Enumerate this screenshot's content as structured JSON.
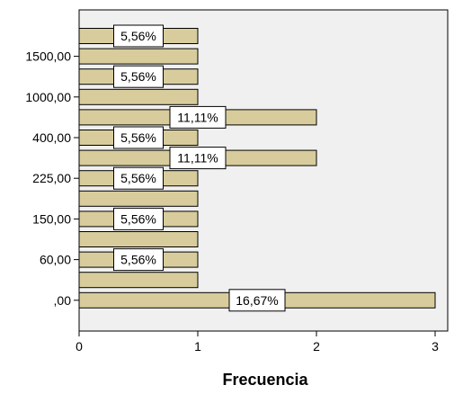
{
  "chart_data": {
    "type": "bar",
    "orientation": "horizontal",
    "title": "",
    "xlabel": "Frecuencia",
    "ylabel": "",
    "xlim": [
      0,
      3
    ],
    "x_ticks": [
      "0",
      "1",
      "2",
      "3"
    ],
    "y_tick_labels": [
      "1500,00",
      "1000,00",
      "400,00",
      "225,00",
      "150,00",
      "60,00",
      ",00"
    ],
    "bars": [
      {
        "value": 1,
        "label": "5,56%"
      },
      {
        "value": 1,
        "label": ""
      },
      {
        "value": 1,
        "label": "5,56%"
      },
      {
        "value": 1,
        "label": ""
      },
      {
        "value": 2,
        "label": "11,11%"
      },
      {
        "value": 1,
        "label": "5,56%"
      },
      {
        "value": 2,
        "label": "11,11%"
      },
      {
        "value": 1,
        "label": "5,56%"
      },
      {
        "value": 1,
        "label": ""
      },
      {
        "value": 1,
        "label": "5,56%"
      },
      {
        "value": 1,
        "label": ""
      },
      {
        "value": 1,
        "label": "5,56%"
      },
      {
        "value": 1,
        "label": ""
      },
      {
        "value": 3,
        "label": "16,67%"
      }
    ],
    "grid": false,
    "colors": {
      "bar_fill": "#d8cc9c",
      "bar_stroke": "#000000",
      "plot_background": "#f0f0f0",
      "label_box": "#ffffff"
    }
  }
}
